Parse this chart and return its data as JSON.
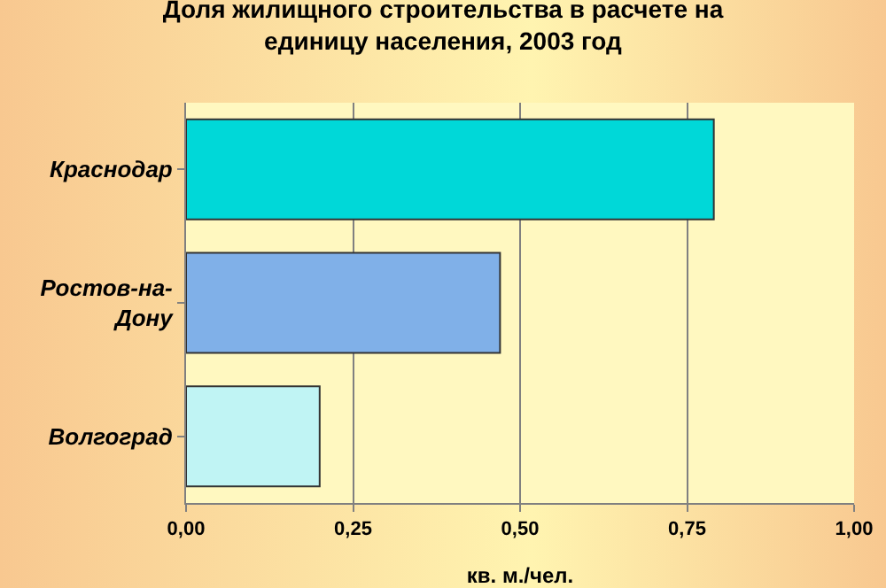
{
  "chart_data": {
    "type": "bar",
    "orientation": "horizontal",
    "title": "Доля жилищного строительства в расчете на\nединицу населения, 2003 год",
    "xlabel": "кв. м./чел.",
    "categories": [
      "Краснодар",
      "Ростов-на-\nДону",
      "Волгоград"
    ],
    "values": [
      0.79,
      0.47,
      0.2
    ],
    "colors": [
      "#00d8d8",
      "#80b0e8",
      "#c0f4f4"
    ],
    "xlim": [
      0,
      1
    ],
    "xticks": [
      {
        "value": 0,
        "label": "0,00"
      },
      {
        "value": 0.25,
        "label": "0,25"
      },
      {
        "value": 0.5,
        "label": "0,50"
      },
      {
        "value": 0.75,
        "label": "0,75"
      },
      {
        "value": 1,
        "label": "1,00"
      }
    ],
    "grid": "x"
  }
}
